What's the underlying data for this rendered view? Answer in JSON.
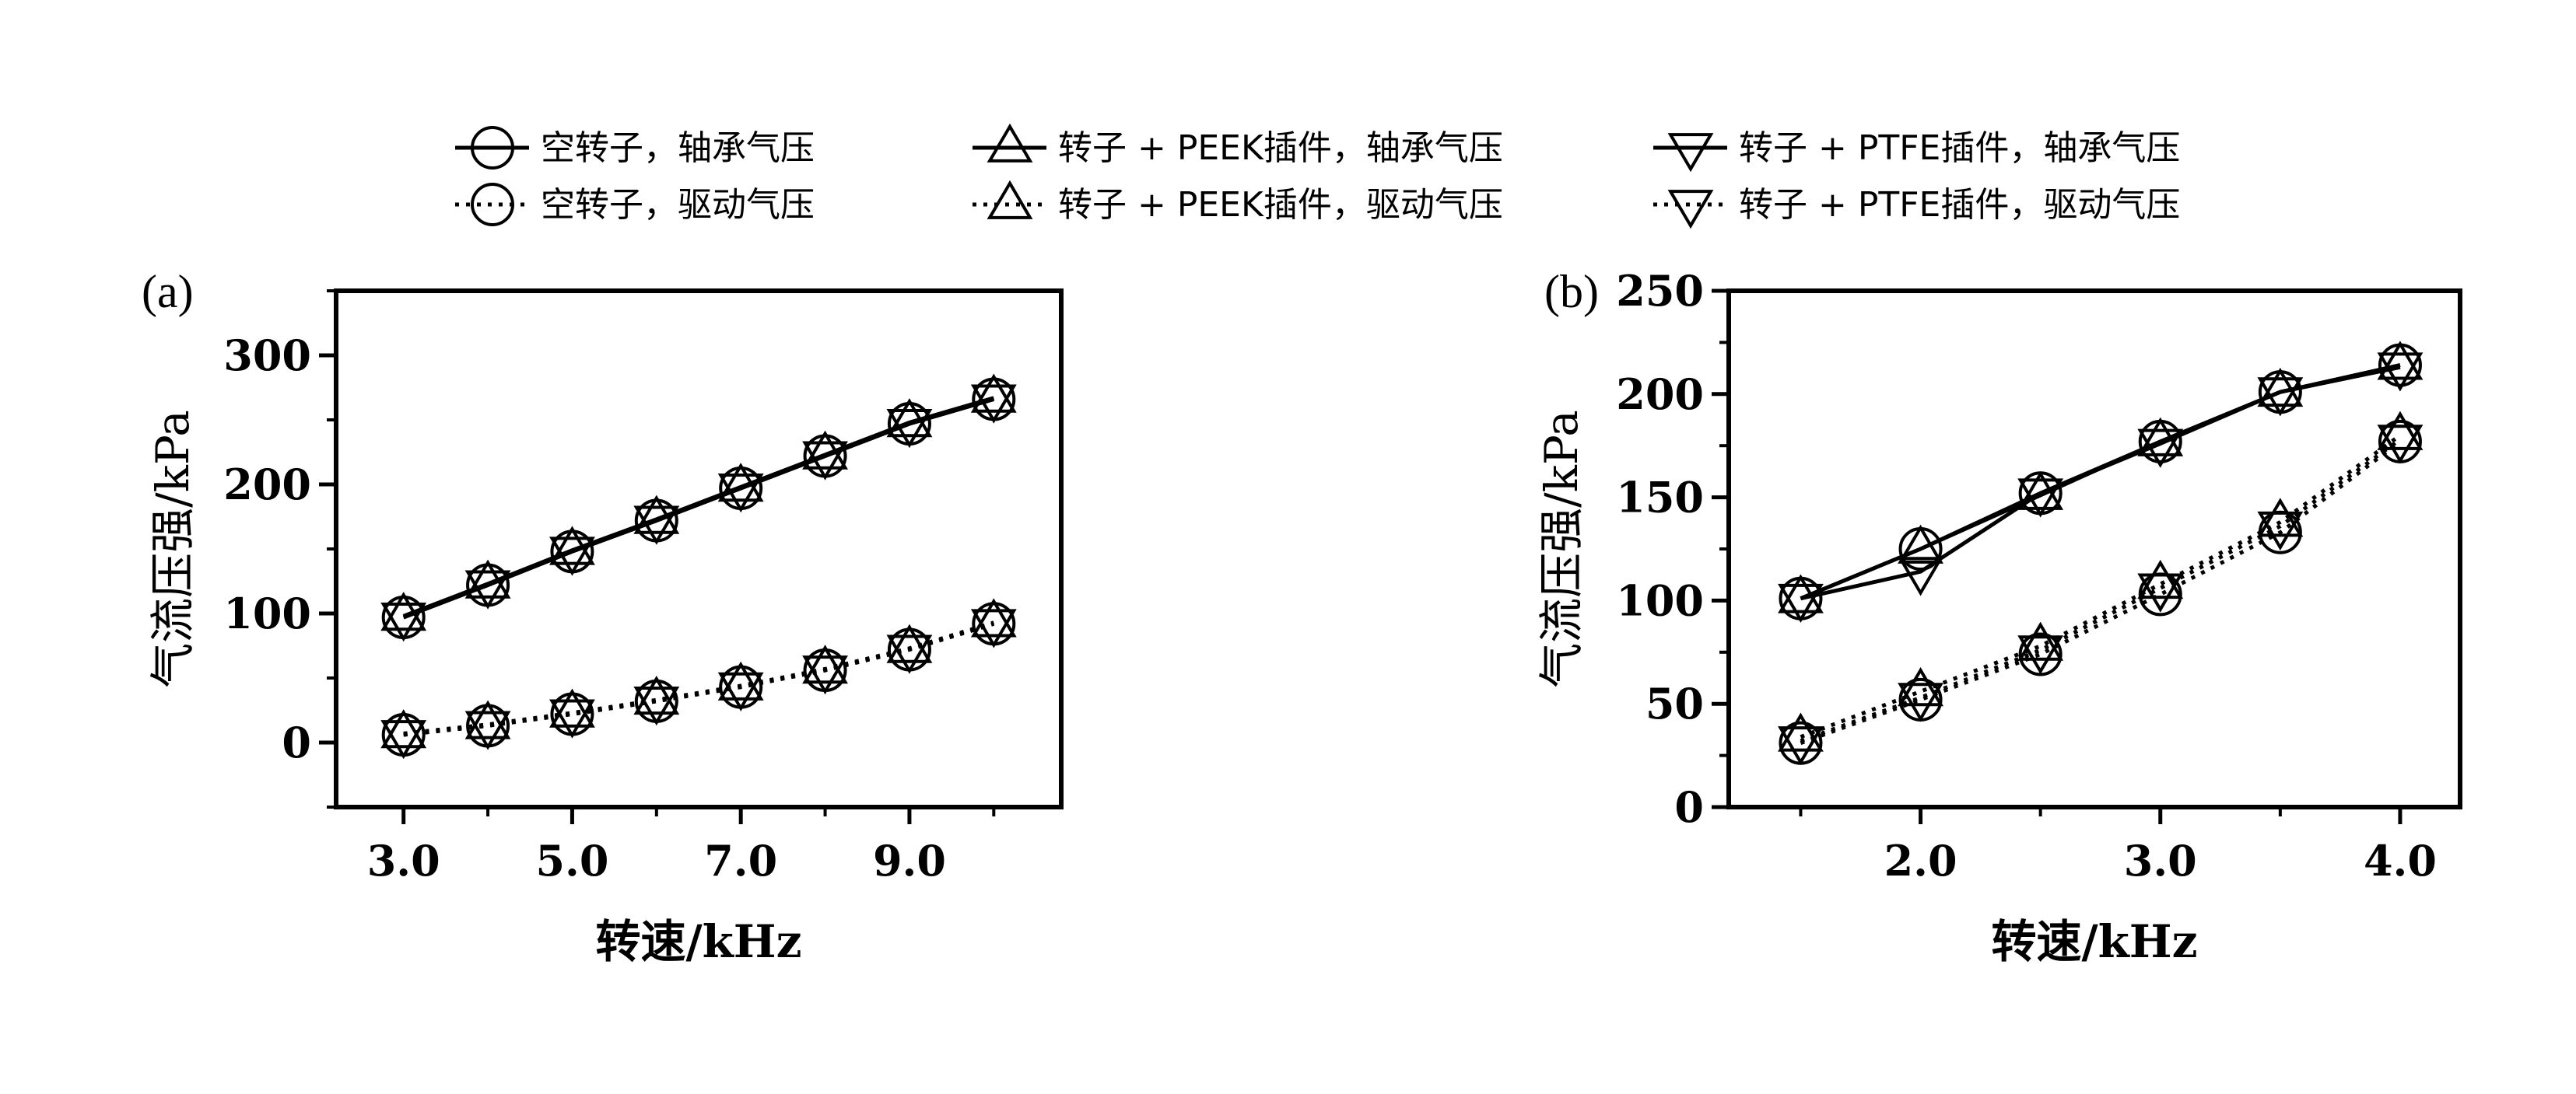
{
  "legend": [
    {
      "label": "空转子，轴承气压",
      "marker": "circle",
      "line": "solid"
    },
    {
      "label": "转子 + PEEK插件，轴承气压",
      "marker": "triangle-up",
      "line": "solid"
    },
    {
      "label": "转子 + PTFE插件，轴承气压",
      "marker": "triangle-down",
      "line": "solid"
    },
    {
      "label": "空转子，驱动气压",
      "marker": "circle",
      "line": "dotted"
    },
    {
      "label": "转子 + PEEK插件，驱动气压",
      "marker": "triangle-up",
      "line": "dotted"
    },
    {
      "label": "转子 + PTFE插件，驱动气压",
      "marker": "triangle-down",
      "line": "dotted"
    }
  ],
  "chart_data": [
    {
      "panel_label": "(a)",
      "type": "line",
      "xlabel": "转速/kHz",
      "ylabel": "气流压强/kPa",
      "xlim": [
        2.2,
        10.8
      ],
      "ylim": [
        -50,
        350
      ],
      "xticks": [
        3,
        5,
        7,
        9
      ],
      "xtick_labels": [
        "3.0",
        "5.0",
        "7.0",
        "9.0"
      ],
      "yticks": [
        0,
        100,
        200,
        300
      ],
      "ytick_labels": [
        "0",
        "100",
        "200",
        "300"
      ],
      "x": [
        3,
        4,
        5,
        6,
        7,
        8,
        9,
        10
      ],
      "series": [
        {
          "name": "空转子，轴承气压",
          "marker": "circle",
          "line": "solid",
          "values": [
            97,
            122,
            148,
            172,
            197,
            222,
            247,
            266
          ]
        },
        {
          "name": "转子 + PEEK插件，轴承气压",
          "marker": "triangle-up",
          "line": "solid",
          "values": [
            98,
            123,
            149,
            173,
            198,
            223,
            248,
            267
          ]
        },
        {
          "name": "转子 + PTFE插件，轴承气压",
          "marker": "triangle-down",
          "line": "solid",
          "values": [
            97,
            122,
            148,
            172,
            197,
            222,
            247,
            266
          ]
        },
        {
          "name": "空转子，驱动气压",
          "marker": "circle",
          "line": "dotted",
          "values": [
            6,
            13,
            22,
            32,
            43,
            56,
            72,
            92
          ]
        },
        {
          "name": "转子 + PEEK插件，驱动气压",
          "marker": "triangle-up",
          "line": "dotted",
          "values": [
            7,
            14,
            23,
            33,
            44,
            57,
            73,
            93
          ]
        },
        {
          "name": "转子 + PTFE插件，驱动气压",
          "marker": "triangle-down",
          "line": "dotted",
          "values": [
            6,
            13,
            22,
            32,
            43,
            56,
            72,
            92
          ]
        }
      ]
    },
    {
      "panel_label": "(b)",
      "type": "line",
      "xlabel": "转速/kHz",
      "ylabel": "气流压强/kPa",
      "xlim": [
        1.2,
        4.25
      ],
      "ylim": [
        0,
        250
      ],
      "xticks": [
        2.0,
        3.0,
        4.0
      ],
      "xtick_labels": [
        "2.0",
        "3.0",
        "4.0"
      ],
      "yticks": [
        0,
        50,
        100,
        150,
        200,
        250
      ],
      "ytick_labels": [
        "0",
        "50",
        "100",
        "150",
        "200",
        "250"
      ],
      "x": [
        1.5,
        2.0,
        2.5,
        3.0,
        3.5,
        4.0
      ],
      "series": [
        {
          "name": "空转子，轴承气压",
          "marker": "circle",
          "line": "solid",
          "values": [
            101,
            125,
            152,
            177,
            201,
            214
          ]
        },
        {
          "name": "转子 + PEEK插件，轴承气压",
          "marker": "triangle-up",
          "line": "solid",
          "values": [
            101,
            125,
            151,
            177,
            201,
            214
          ]
        },
        {
          "name": "转子 + PTFE插件，轴承气压",
          "marker": "triangle-down",
          "line": "solid",
          "values": [
            101,
            114,
            152,
            176,
            201,
            213
          ]
        },
        {
          "name": "空转子，驱动气压",
          "marker": "circle",
          "line": "dotted",
          "values": [
            31,
            52,
            74,
            103,
            133,
            177
          ]
        },
        {
          "name": "转子 + PEEK插件，驱动气压",
          "marker": "triangle-up",
          "line": "dotted",
          "values": [
            34,
            56,
            78,
            108,
            138,
            180
          ]
        },
        {
          "name": "转子 + PTFE插件，驱动气压",
          "marker": "triangle-down",
          "line": "dotted",
          "values": [
            32,
            53,
            76,
            106,
            136,
            178
          ]
        }
      ]
    }
  ]
}
